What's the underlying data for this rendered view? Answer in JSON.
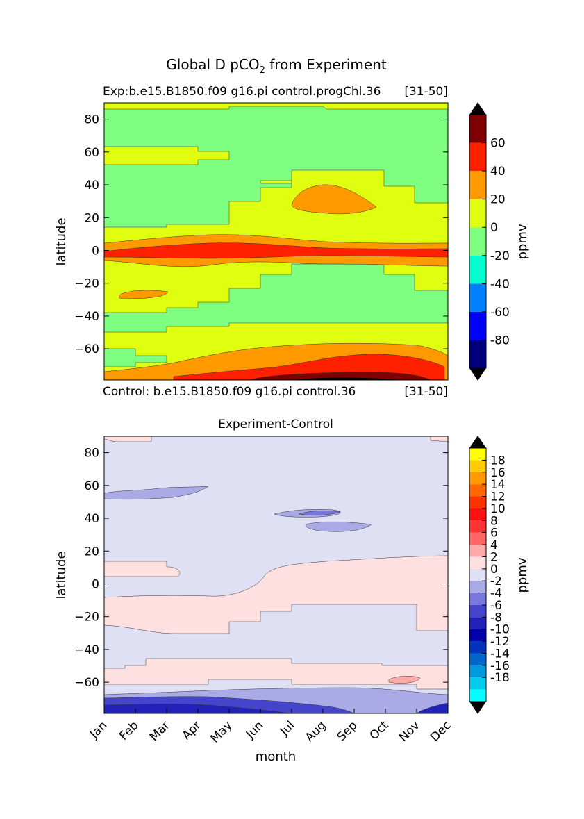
{
  "figure": {
    "suptitle": "Global D pCO",
    "suptitle_sub": "2",
    "suptitle_rest": " from Experiment"
  },
  "chart_data": [
    {
      "type": "heatmap",
      "panel": "experiment",
      "title_left": "Exp:b.e15.B1850.f09 g16.pi control.progChl.36",
      "title_right": "[31-50]",
      "footer_left": "Control: b.e15.B1850.f09 g16.pi control.36",
      "footer_right": "[31-50]",
      "ylabel": "latitude",
      "xlabel": "",
      "x": [
        "Jan",
        "Feb",
        "Mar",
        "Apr",
        "May",
        "Jun",
        "Jul",
        "Aug",
        "Sep",
        "Oct",
        "Nov",
        "Dec"
      ],
      "ylim": [
        -79,
        90
      ],
      "yticks": [
        80,
        60,
        40,
        20,
        0,
        -20,
        -40,
        -60
      ],
      "colorbar": {
        "label": "ppmv",
        "levels": [
          -100,
          -80,
          -60,
          -40,
          -20,
          0,
          20,
          40,
          60,
          80
        ],
        "tick_labels": [
          "60",
          "40",
          "20",
          "0",
          "-20",
          "-40",
          "-60",
          "-80"
        ],
        "colors": [
          "#00007f",
          "#0000ff",
          "#007fff",
          "#00ffcc",
          "#7fff7f",
          "#e0ff10",
          "#ff9900",
          "#ff2000",
          "#7f0000"
        ],
        "extend_colors": {
          "max": "#000000",
          "min": "#000000"
        }
      },
      "bands": [
        {
          "lat_range": [
            83,
            90
          ],
          "level_range": [
            0,
            20
          ],
          "color": "#e0ff10"
        },
        {
          "lat_range": [
            60,
            83
          ],
          "level_range": [
            -20,
            0
          ],
          "color": "#7fff7f"
        },
        {
          "lat_range": [
            50,
            60
          ],
          "level_range": [
            0,
            20
          ],
          "color": "#e0ff10"
        },
        {
          "lat_range": [
            15,
            48
          ],
          "level_range": [
            -20,
            0
          ],
          "color": "#7fff7f"
        },
        {
          "lat_range": [
            27,
            36
          ],
          "level_range": [
            20,
            40
          ],
          "color": "#ff9900"
        },
        {
          "lat_range": [
            -5,
            5
          ],
          "level_range": [
            20,
            40
          ],
          "color": "#ff9900"
        },
        {
          "lat_range": [
            -3,
            3
          ],
          "level_range": [
            40,
            60
          ],
          "color": "#ff2000"
        },
        {
          "lat_range": [
            -65,
            -15
          ],
          "level_range": [
            -20,
            0
          ],
          "color": "#7fff7f"
        },
        {
          "lat_range": [
            -28,
            -24
          ],
          "level_range": [
            20,
            40
          ],
          "color": "#ff9900"
        },
        {
          "lat_range": [
            -79,
            -62
          ],
          "level_range": [
            20,
            40
          ],
          "color": "#ff9900"
        },
        {
          "lat_range": [
            -79,
            -70
          ],
          "level_range": [
            40,
            60
          ],
          "color": "#ff2000"
        },
        {
          "lat_range": [
            -79,
            -77
          ],
          "level_range": [
            60,
            80
          ],
          "color": "#7f0000"
        }
      ]
    },
    {
      "type": "heatmap",
      "panel": "difference",
      "title": "Experiment-Control",
      "ylabel": "latitude",
      "xlabel": "month",
      "x": [
        "Jan",
        "Feb",
        "Mar",
        "Apr",
        "May",
        "Jun",
        "Jul",
        "Aug",
        "Sep",
        "Oct",
        "Nov",
        "Dec"
      ],
      "ylim": [
        -79,
        90
      ],
      "yticks": [
        80,
        60,
        40,
        20,
        0,
        -20,
        -40,
        -60
      ],
      "colorbar": {
        "label": "ppmv",
        "levels": [
          -20,
          -18,
          -16,
          -14,
          -12,
          -10,
          -8,
          -6,
          -4,
          -2,
          0,
          2,
          4,
          6,
          8,
          10,
          12,
          14,
          16,
          18,
          20
        ],
        "tick_labels": [
          "18",
          "16",
          "14",
          "12",
          "10",
          "8",
          "6",
          "4",
          "2",
          "0",
          "-2",
          "-4",
          "-6",
          "-8",
          "-10",
          "-12",
          "-14",
          "-16",
          "-18"
        ],
        "colors": [
          "#00ffff",
          "#00ccee",
          "#0099dd",
          "#0066cc",
          "#0033bb",
          "#0000aa",
          "#2222bb",
          "#4444cc",
          "#7777dd",
          "#aaaae6",
          "#e0e0f4",
          "#ffe0e0",
          "#ffaaaa",
          "#ff6666",
          "#ff3333",
          "#ff1111",
          "#ff3300",
          "#ff6600",
          "#ff9900",
          "#ffcc00",
          "#ffff00"
        ],
        "extend_colors": {
          "max": "#000000",
          "min": "#000000"
        }
      },
      "bands": [
        {
          "lat_range": [
            86,
            90
          ],
          "level_range": [
            0,
            2
          ],
          "color": "#ffe0e0"
        },
        {
          "lat_range": [
            14,
            86
          ],
          "level_range": [
            -2,
            0
          ],
          "color": "#e0e0f4"
        },
        {
          "lat_range": [
            51,
            57
          ],
          "level_range": [
            -4,
            -2
          ],
          "color": "#aaaae6"
        },
        {
          "lat_range": [
            40,
            44
          ],
          "level_range": [
            -6,
            -4
          ],
          "color": "#7777dd"
        },
        {
          "lat_range": [
            31,
            37
          ],
          "level_range": [
            -4,
            -2
          ],
          "color": "#aaaae6"
        },
        {
          "lat_range": [
            -25,
            14
          ],
          "level_range": [
            0,
            2
          ],
          "color": "#ffe0e0"
        },
        {
          "lat_range": [
            -65,
            -25
          ],
          "level_range": [
            -2,
            0
          ],
          "color": "#e0e0f4"
        },
        {
          "lat_range": [
            -67,
            -48
          ],
          "level_range": [
            0,
            2
          ],
          "color": "#ffe0e0"
        },
        {
          "lat_range": [
            -60,
            -57
          ],
          "level_range": [
            2,
            4
          ],
          "color": "#ffaaaa"
        },
        {
          "lat_range": [
            -79,
            -67
          ],
          "level_range": [
            -4,
            -2
          ],
          "color": "#aaaae6"
        },
        {
          "lat_range": [
            -79,
            -72
          ],
          "level_range": [
            -8,
            -6
          ],
          "color": "#4444cc"
        },
        {
          "lat_range": [
            -79,
            -76
          ],
          "level_range": [
            -10,
            -8
          ],
          "color": "#2222bb"
        }
      ]
    }
  ]
}
